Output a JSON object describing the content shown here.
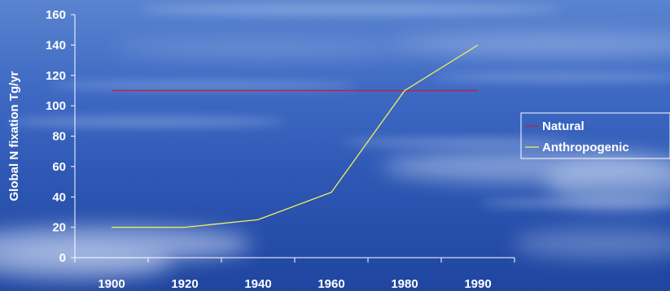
{
  "chart_data": {
    "type": "line",
    "categories": [
      "1900",
      "1920",
      "1940",
      "1960",
      "1980",
      "1990"
    ],
    "series": [
      {
        "name": "Natural",
        "values": [
          110,
          110,
          110,
          110,
          110,
          110
        ],
        "color": "#c0203a"
      },
      {
        "name": "Anthropogenic",
        "values": [
          20,
          20,
          25,
          43,
          110,
          140
        ],
        "color": "#f2f25a"
      }
    ],
    "title": "",
    "xlabel": "",
    "ylabel": "Global N fixation Tg/yr",
    "ylim": [
      0,
      160
    ],
    "yticks": [
      "0",
      "20",
      "40",
      "60",
      "80",
      "100",
      "120",
      "140",
      "160"
    ],
    "grid": false,
    "legend": "right"
  }
}
